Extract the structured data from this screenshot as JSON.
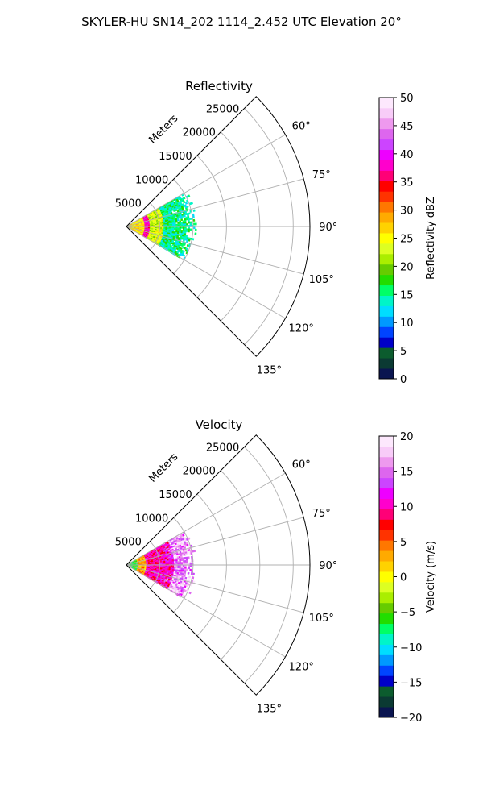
{
  "figure_title": "SKYLER-HU  SN14_202  1114_2.452 UTC Elevation 20°",
  "chart_data": [
    {
      "type": "polar-sector",
      "title": "Reflectivity",
      "radial_label": "Meters",
      "radial_ticks": [
        5000,
        10000,
        15000,
        20000,
        25000
      ],
      "radial_tick_labels": [
        "5000",
        "10000",
        "15000",
        "20000",
        "25000"
      ],
      "r_max": 27500,
      "angle_range_deg": [
        45,
        135
      ],
      "angle_ticks": [
        60,
        75,
        90,
        105,
        120,
        135
      ],
      "angle_tick_labels": [
        "60°",
        "75°",
        "90°",
        "105°",
        "120°",
        "135°"
      ],
      "data_extent": {
        "angle_deg": [
          60,
          120
        ],
        "r_max": 10500
      },
      "field_structure": [
        {
          "r": [
            0,
            2500
          ],
          "value": 26
        },
        {
          "r": [
            2500,
            3500
          ],
          "value": 38
        },
        {
          "r": [
            3500,
            5500
          ],
          "value": 23
        },
        {
          "r": [
            5500,
            10500
          ],
          "value": 15
        }
      ],
      "colorbar": {
        "label": "Reflectivity dBZ",
        "min": 0,
        "max": 50,
        "ticks": [
          0,
          5,
          10,
          15,
          20,
          25,
          30,
          35,
          40,
          45,
          50
        ],
        "tick_labels": [
          "0",
          "5",
          "10",
          "15",
          "20",
          "25",
          "30",
          "35",
          "40",
          "45",
          "50"
        ]
      },
      "grid": true
    },
    {
      "type": "polar-sector",
      "title": "Velocity",
      "radial_label": "Meters",
      "radial_ticks": [
        5000,
        10000,
        15000,
        20000,
        25000
      ],
      "radial_tick_labels": [
        "5000",
        "10000",
        "15000",
        "20000",
        "25000"
      ],
      "r_max": 27500,
      "angle_range_deg": [
        45,
        135
      ],
      "angle_ticks": [
        60,
        75,
        90,
        105,
        120,
        135
      ],
      "angle_tick_labels": [
        "60°",
        "75°",
        "90°",
        "105°",
        "120°",
        "135°"
      ],
      "data_extent": {
        "angle_deg": [
          60,
          120
        ],
        "r_max": 10500
      },
      "field_structure": [
        {
          "r": [
            0,
            1500
          ],
          "value": -6
        },
        {
          "r": [
            1500,
            3000
          ],
          "value": 3
        },
        {
          "r": [
            3000,
            7000
          ],
          "value": 10
        },
        {
          "r": [
            7000,
            10500
          ],
          "value": 15
        }
      ],
      "colorbar": {
        "label": "Velocity (m/s)",
        "min": -20,
        "max": 20,
        "ticks": [
          -20,
          -15,
          -10,
          -5,
          0,
          5,
          10,
          15,
          20
        ],
        "tick_labels": [
          "−20",
          "−15",
          "−10",
          "−5",
          "0",
          "5",
          "10",
          "15",
          "20"
        ]
      },
      "grid": true
    }
  ],
  "colormap": [
    "#0a1550",
    "#0b3a33",
    "#0c5c2e",
    "#0000c8",
    "#0044ff",
    "#0099ff",
    "#00ddff",
    "#00f5c8",
    "#00ff66",
    "#22dd00",
    "#66cc00",
    "#aaee00",
    "#ddff22",
    "#ffff00",
    "#ffd200",
    "#ffaa00",
    "#ff7700",
    "#ff3300",
    "#ff0000",
    "#ff0077",
    "#ff00cc",
    "#ee00ff",
    "#cc44ff",
    "#dd66ee",
    "#ee99ee",
    "#f8ccf8",
    "#fde8fd"
  ]
}
